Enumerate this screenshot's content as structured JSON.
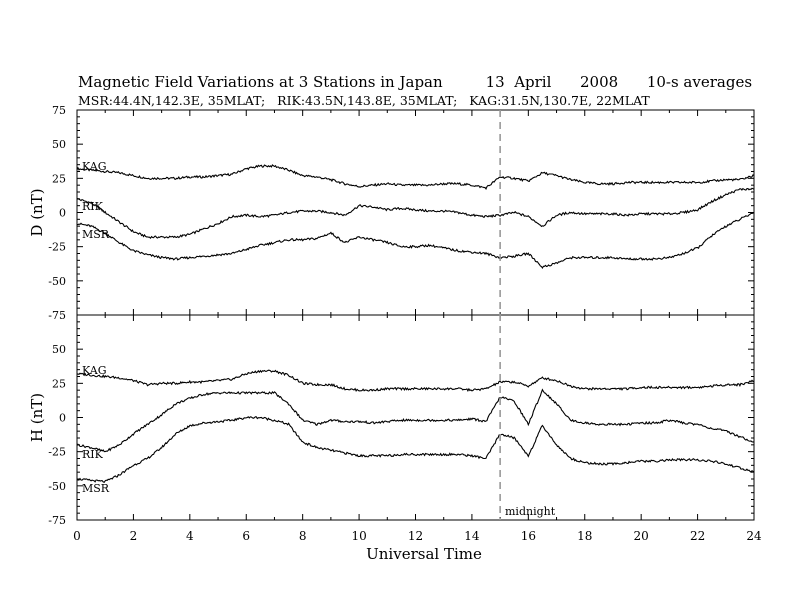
{
  "header": {
    "title": "Magnetic Field Variations at 3 Stations in Japan",
    "date": "13  April",
    "year": "2008",
    "averaging": "10-s averages",
    "stations_line": "MSR:44.4N,142.3E, 35MLAT;   RIK:43.5N,143.8E, 35MLAT;   KAG:31.5N,130.7E, 22MLAT"
  },
  "chart_data": [
    {
      "type": "line",
      "panel": "D",
      "ylabel": "D (nT)",
      "xlabel": "",
      "xlim": [
        0,
        24
      ],
      "ylim": [
        -75,
        75
      ],
      "x_ticks": [
        "0",
        "2",
        "4",
        "6",
        "8",
        "10",
        "12",
        "14",
        "16",
        "18",
        "20",
        "22",
        "24"
      ],
      "y_ticks": [
        "75",
        "50",
        "25",
        "0",
        "-25",
        "-50",
        "-75"
      ],
      "y_tick_values": [
        75,
        50,
        25,
        0,
        -25,
        -50,
        -75
      ],
      "x": [
        0,
        0.5,
        1,
        1.5,
        2,
        2.5,
        3,
        3.5,
        4,
        4.5,
        5,
        5.5,
        6,
        6.5,
        7,
        7.5,
        8,
        8.5,
        9,
        9.5,
        10,
        10.5,
        11,
        11.5,
        12,
        12.5,
        13,
        13.5,
        14,
        14.5,
        15,
        15.5,
        16,
        16.5,
        17,
        17.5,
        18,
        18.5,
        19,
        19.5,
        20,
        20.5,
        21,
        21.5,
        22,
        22.5,
        23,
        23.5,
        24
      ],
      "series": [
        {
          "name": "KAG",
          "values": [
            32,
            31,
            30,
            29,
            27,
            25,
            25,
            25,
            26,
            26,
            27,
            28,
            32,
            34,
            34,
            31,
            27,
            26,
            24,
            21,
            19,
            20,
            21,
            20,
            20,
            20,
            21,
            21,
            20,
            18,
            26,
            25,
            23,
            29,
            27,
            24,
            22,
            21,
            21,
            22,
            22,
            22,
            22,
            22,
            22,
            23,
            24,
            24,
            27
          ]
        },
        {
          "name": "RIK",
          "values": [
            10,
            7,
            0,
            -7,
            -14,
            -18,
            -18,
            -18,
            -16,
            -12,
            -8,
            -3,
            -2,
            -3,
            -2,
            0,
            1,
            1,
            0,
            -2,
            5,
            4,
            2,
            3,
            2,
            1,
            1,
            0,
            -2,
            -3,
            -2,
            0,
            -3,
            -10,
            -2,
            0,
            -1,
            -1,
            -1,
            -2,
            -1,
            -1,
            -1,
            0,
            2,
            8,
            13,
            17,
            17
          ]
        },
        {
          "name": "MSR",
          "values": [
            -8,
            -10,
            -15,
            -22,
            -28,
            -31,
            -33,
            -34,
            -33,
            -32,
            -31,
            -30,
            -27,
            -24,
            -22,
            -20,
            -20,
            -19,
            -15,
            -22,
            -18,
            -20,
            -22,
            -25,
            -25,
            -24,
            -26,
            -28,
            -29,
            -30,
            -33,
            -32,
            -30,
            -40,
            -37,
            -33,
            -33,
            -33,
            -33,
            -34,
            -34,
            -34,
            -33,
            -30,
            -26,
            -17,
            -10,
            -5,
            0
          ]
        }
      ],
      "annotations": [
        "KAG",
        "RIK",
        "MSR"
      ]
    },
    {
      "type": "line",
      "panel": "H",
      "ylabel": "H (nT)",
      "xlabel": "Universal Time",
      "xlim": [
        0,
        24
      ],
      "ylim": [
        -75,
        75
      ],
      "x_ticks": [
        "0",
        "2",
        "4",
        "6",
        "8",
        "10",
        "12",
        "14",
        "16",
        "18",
        "20",
        "22",
        "24"
      ],
      "y_ticks": [
        "75",
        "50",
        "25",
        "0",
        "-25",
        "-50",
        "-75"
      ],
      "y_tick_values": [
        75,
        50,
        25,
        0,
        -25,
        -50,
        -75
      ],
      "x": [
        0,
        0.5,
        1,
        1.5,
        2,
        2.5,
        3,
        3.5,
        4,
        4.5,
        5,
        5.5,
        6,
        6.5,
        7,
        7.5,
        8,
        8.5,
        9,
        9.5,
        10,
        10.5,
        11,
        11.5,
        12,
        12.5,
        13,
        13.5,
        14,
        14.5,
        15,
        15.5,
        16,
        16.5,
        17,
        17.5,
        18,
        18.5,
        19,
        19.5,
        20,
        20.5,
        21,
        21.5,
        22,
        22.5,
        23,
        23.5,
        24
      ],
      "series": [
        {
          "name": "KAG",
          "values": [
            32,
            31,
            30,
            29,
            27,
            24,
            25,
            25,
            26,
            26,
            27,
            28,
            32,
            34,
            34,
            31,
            25,
            24,
            24,
            21,
            20,
            20,
            21,
            21,
            21,
            21,
            21,
            21,
            20,
            21,
            26,
            26,
            23,
            29,
            27,
            23,
            21,
            21,
            21,
            21,
            22,
            22,
            22,
            22,
            22,
            23,
            24,
            24,
            27
          ]
        },
        {
          "name": "RIK",
          "values": [
            -20,
            -22,
            -25,
            -20,
            -12,
            -5,
            2,
            10,
            14,
            17,
            18,
            18,
            18,
            18,
            18,
            10,
            -2,
            -5,
            -2,
            -3,
            -3,
            -4,
            -3,
            -2,
            -2,
            -2,
            -2,
            -2,
            -1,
            -3,
            15,
            12,
            -5,
            20,
            10,
            -2,
            -4,
            -5,
            -5,
            -5,
            -4,
            -4,
            -2,
            -4,
            -5,
            -8,
            -10,
            -14,
            -18
          ]
        },
        {
          "name": "MSR",
          "values": [
            -45,
            -46,
            -47,
            -42,
            -35,
            -30,
            -22,
            -12,
            -6,
            -4,
            -3,
            -2,
            0,
            0,
            -2,
            -5,
            -18,
            -22,
            -24,
            -26,
            -28,
            -28,
            -28,
            -27,
            -27,
            -27,
            -27,
            -27,
            -28,
            -30,
            -12,
            -15,
            -28,
            -6,
            -20,
            -30,
            -33,
            -34,
            -34,
            -33,
            -32,
            -32,
            -31,
            -31,
            -31,
            -32,
            -34,
            -37,
            -40
          ]
        }
      ],
      "annotations": [
        "KAG",
        "RIK",
        "MSR"
      ]
    }
  ],
  "midline": {
    "x": 15,
    "label": "midnight"
  }
}
